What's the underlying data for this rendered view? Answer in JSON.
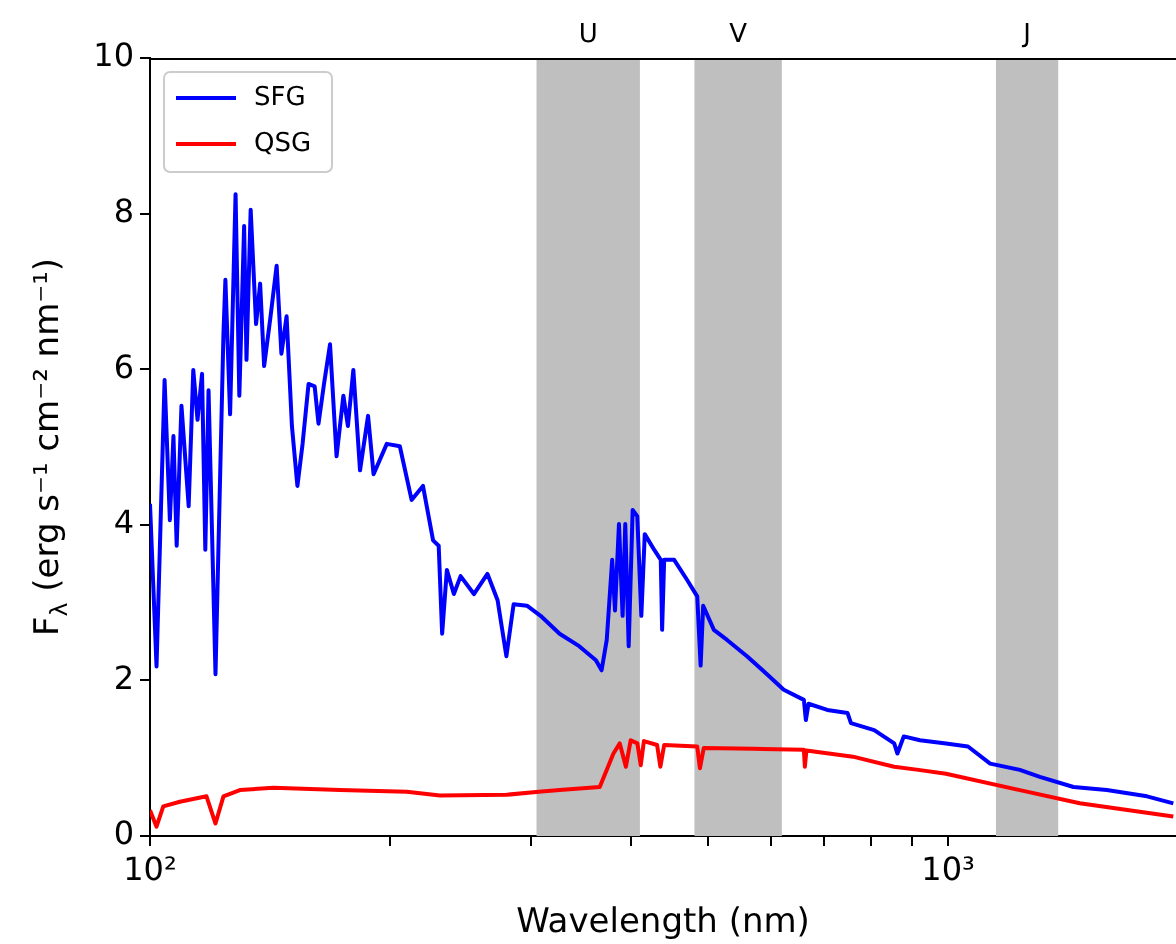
{
  "chart_data": {
    "type": "line",
    "xlabel": "Wavelength (nm)",
    "ylabel": "F$_{λ}$ (erg s⁻¹ cm⁻² nm⁻¹)",
    "log": "x",
    "grid": false,
    "legend": "top left",
    "marker": "none",
    "line_style": "solid",
    "xlim": [
      100,
      1930
    ],
    "ylim": [
      0,
      10
    ],
    "xticks": [
      {
        "value": 100,
        "label": "10²"
      },
      {
        "value": 200,
        "label": null
      },
      {
        "value": 300,
        "label": null
      },
      {
        "value": 400,
        "label": null
      },
      {
        "value": 500,
        "label": null
      },
      {
        "value": 600,
        "label": null
      },
      {
        "value": 700,
        "label": null
      },
      {
        "value": 800,
        "label": null
      },
      {
        "value": 900,
        "label": null
      },
      {
        "value": 1000,
        "label": "10³"
      }
    ],
    "yticks": [
      0,
      2,
      4,
      6,
      8,
      10
    ],
    "bands": [
      {
        "axis": "x",
        "from": 305,
        "to": 411,
        "label": "U",
        "color": "#bfbfbf"
      },
      {
        "axis": "x",
        "from": 481,
        "to": 619,
        "label": "V",
        "color": "#bfbfbf"
      },
      {
        "axis": "x",
        "from": 1148,
        "to": 1374,
        "label": "J",
        "color": "#bfbfbf"
      }
    ],
    "series": [
      {
        "name": "SFG",
        "color": "#0000ff",
        "x": [
          100,
          101.9,
          104.3,
          105.9,
          107,
          108,
          109.5,
          111.8,
          113.3,
          114.7,
          116.2,
          117.3,
          118.4,
          120.8,
          123.6,
          124.3,
          126,
          128,
          129.4,
          131.2,
          132.1,
          133.7,
          135.8,
          137.4,
          139,
          141.6,
          144.1,
          146.1,
          148.3,
          150.6,
          153,
          155.3,
          158,
          160.8,
          162.6,
          165.2,
          168.1,
          171.3,
          174.7,
          177,
          179.8,
          183.3,
          187.6,
          190.6,
          198,
          205.6,
          212.7,
          219.8,
          226.3,
          230,
          232.3,
          235.5,
          240.3,
          245,
          254.6,
          264.7,
          272.6,
          279.6,
          285.5,
          296.7,
          308.6,
          326,
          345,
          362,
          368,
          373.5,
          379.4,
          382.5,
          386.9,
          391,
          394,
          397.9,
          402.5,
          407.9,
          412.7,
          416.8,
          428.2,
          436.5,
          438.2,
          440.8,
          453.7,
          471,
          484.9,
          489.7,
          493.3,
          508.8,
          528.5,
          559.8,
          593,
          622.4,
          659.6,
          663.4,
          668.5,
          705.7,
          748.3,
          755.6,
          808,
          856,
          864,
          880,
          922,
          994,
          1059,
          1129,
          1230,
          1303,
          1436,
          1581,
          1775,
          1915
        ],
        "values": [
          4.27,
          2.18,
          5.86,
          4.06,
          5.14,
          3.73,
          5.53,
          4.24,
          5.99,
          5.35,
          5.94,
          3.68,
          5.73,
          2.08,
          6.45,
          7.15,
          5.42,
          8.25,
          5.66,
          7.84,
          6.12,
          8.05,
          6.58,
          7.1,
          6.04,
          6.68,
          7.33,
          6.2,
          6.68,
          5.27,
          4.5,
          5.04,
          5.81,
          5.78,
          5.3,
          5.81,
          6.32,
          4.88,
          5.66,
          5.27,
          5.99,
          4.7,
          5.4,
          4.65,
          5.04,
          5.01,
          4.32,
          4.5,
          3.8,
          3.73,
          2.6,
          3.42,
          3.11,
          3.34,
          3.11,
          3.37,
          3.03,
          2.31,
          2.98,
          2.96,
          2.83,
          2.6,
          2.44,
          2.26,
          2.13,
          2.52,
          3.55,
          2.9,
          4.01,
          2.83,
          4.01,
          2.44,
          4.19,
          4.11,
          2.83,
          3.88,
          3.68,
          3.55,
          2.65,
          3.55,
          3.55,
          3.29,
          3.08,
          2.19,
          2.96,
          2.65,
          2.52,
          2.31,
          2.08,
          1.88,
          1.75,
          1.49,
          1.7,
          1.62,
          1.58,
          1.45,
          1.36,
          1.19,
          1.06,
          1.28,
          1.23,
          1.19,
          1.15,
          0.93,
          0.85,
          0.76,
          0.63,
          0.59,
          0.51,
          0.42
        ]
      },
      {
        "name": "QSG",
        "color": "#ff0000",
        "x": [
          100,
          101.9,
          103.9,
          109,
          117.7,
          120.8,
          123.6,
          129.6,
          142.8,
          173,
          209.8,
          230.8,
          279.8,
          307,
          326,
          366,
          380.8,
          387.8,
          394.7,
          400.2,
          408,
          412,
          415.8,
          431.9,
          436,
          440.8,
          484.9,
          488.7,
          494.1,
          569.5,
          659.6,
          661.5,
          664.5,
          760,
          856,
          918,
          994,
          1230,
          1462,
          1915
        ],
        "values": [
          0.33,
          0.12,
          0.38,
          0.44,
          0.51,
          0.16,
          0.51,
          0.59,
          0.62,
          0.59,
          0.57,
          0.52,
          0.53,
          0.57,
          0.59,
          0.63,
          1.06,
          1.19,
          0.89,
          1.23,
          1.19,
          0.91,
          1.22,
          1.17,
          0.89,
          1.17,
          1.15,
          0.87,
          1.13,
          1.12,
          1.11,
          0.89,
          1.1,
          1.02,
          0.89,
          0.85,
          0.8,
          0.59,
          0.42,
          0.25
        ]
      }
    ]
  }
}
